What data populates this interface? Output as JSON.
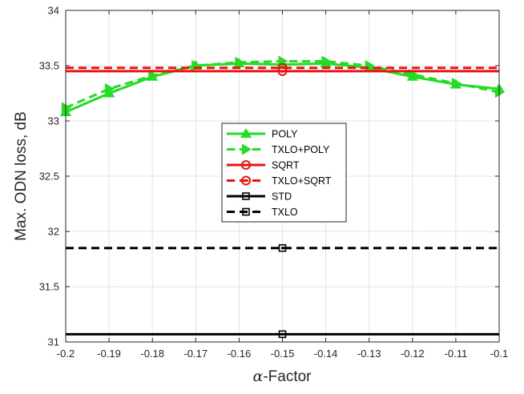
{
  "chart_data": {
    "type": "line",
    "xlabel_symbol": "α",
    "xlabel_rest": "-Factor",
    "ylabel": "Max. ODN loss, dB",
    "xlim": [
      -0.2,
      -0.1
    ],
    "ylim": [
      31,
      34
    ],
    "x_ticks": [
      -0.2,
      -0.19,
      -0.18,
      -0.17,
      -0.16,
      -0.15,
      -0.14,
      -0.13,
      -0.12,
      -0.11,
      -0.1
    ],
    "x_tick_labels": [
      "-0.2",
      "-0.19",
      "-0.18",
      "-0.17",
      "-0.16",
      "-0.15",
      "-0.14",
      "-0.13",
      "-0.12",
      "-0.11",
      "-0.1"
    ],
    "y_ticks": [
      31,
      31.5,
      32,
      32.5,
      33,
      33.5,
      34
    ],
    "y_tick_labels": [
      "31",
      "31.5",
      "32",
      "32.5",
      "33",
      "33.5",
      "34"
    ],
    "grid": true,
    "legend_position": "center",
    "series": [
      {
        "name": "POLY",
        "color": "#22dd22",
        "dashed": false,
        "marker": "triangle-up",
        "x": [
          -0.2,
          -0.19,
          -0.18,
          -0.17,
          -0.16,
          -0.15,
          -0.14,
          -0.13,
          -0.12,
          -0.11,
          -0.1
        ],
        "y": [
          33.08,
          33.25,
          33.4,
          33.5,
          33.52,
          33.51,
          33.52,
          33.48,
          33.4,
          33.33,
          33.29
        ]
      },
      {
        "name": "TXLO+POLY",
        "color": "#22dd22",
        "dashed": true,
        "marker": "triangle-right",
        "x": [
          -0.2,
          -0.19,
          -0.18,
          -0.17,
          -0.16,
          -0.15,
          -0.14,
          -0.13,
          -0.12,
          -0.11,
          -0.1
        ],
        "y": [
          33.12,
          33.29,
          33.41,
          33.5,
          33.53,
          33.54,
          33.54,
          33.5,
          33.42,
          33.34,
          33.26
        ]
      },
      {
        "name": "SQRT",
        "color": "#ee1111",
        "dashed": false,
        "marker": "circle",
        "x": [
          -0.2,
          -0.1
        ],
        "y": [
          33.45,
          33.45
        ],
        "marker_x": [
          -0.15
        ],
        "marker_y": [
          33.45
        ]
      },
      {
        "name": "TXLO+SQRT",
        "color": "#ee1111",
        "dashed": true,
        "marker": "circle-bar",
        "x": [
          -0.2,
          -0.1
        ],
        "y": [
          33.48,
          33.48
        ],
        "marker_x": [
          -0.15
        ],
        "marker_y": [
          33.48
        ]
      },
      {
        "name": "STD",
        "color": "#000000",
        "dashed": false,
        "marker": "square",
        "x": [
          -0.2,
          -0.1
        ],
        "y": [
          31.07,
          31.07
        ],
        "marker_x": [
          -0.15
        ],
        "marker_y": [
          31.07
        ]
      },
      {
        "name": "TXLO",
        "color": "#000000",
        "dashed": true,
        "marker": "square-dot",
        "x": [
          -0.2,
          -0.1
        ],
        "y": [
          31.85,
          31.85
        ],
        "marker_x": [
          -0.15
        ],
        "marker_y": [
          31.85
        ]
      }
    ]
  }
}
